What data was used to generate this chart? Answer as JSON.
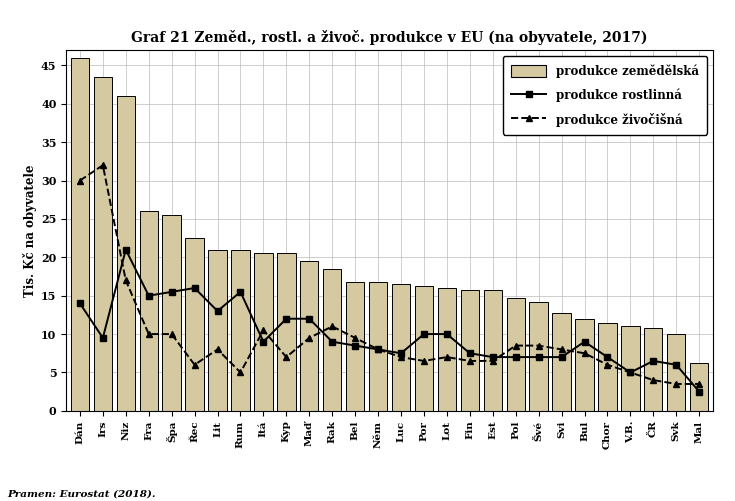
{
  "title": "Graf 21 Zeměd., rostl. a živoč. produkce v EU (na obyvatele, 2017)",
  "ylabel": "Tis. Kč na obyvatele",
  "source": "Pramen: Eurostat (2018).",
  "categories": [
    "Dán",
    "Irs",
    "Niz",
    "Fra",
    "Špa",
    "Řec",
    "Lit",
    "Rum",
    "Itá",
    "Kyp",
    "Maď",
    "Rak",
    "Bel",
    "Něm",
    "Luc",
    "Por",
    "Lot",
    "Fin",
    "Est",
    "Pol",
    "Švé",
    "Svi",
    "Bul",
    "Chor",
    "V.B.",
    "ČR",
    "Svk",
    "Mal"
  ],
  "bar_values": [
    46,
    43.5,
    41,
    26,
    25.5,
    22.5,
    21,
    21,
    20.5,
    20.5,
    19.5,
    18.5,
    16.8,
    16.8,
    16.5,
    16.2,
    16,
    15.8,
    15.8,
    14.7,
    14.2,
    12.8,
    12,
    11.5,
    11,
    10.8,
    10,
    6.2
  ],
  "line1_values": [
    14,
    9.5,
    21,
    15,
    15.5,
    16,
    13,
    15.5,
    9,
    12,
    12,
    9,
    8.5,
    8,
    7.5,
    10,
    10,
    7.5,
    7,
    7,
    7,
    7,
    9,
    7,
    5,
    6.5,
    6,
    2.5
  ],
  "line2_values": [
    30,
    32,
    17,
    10,
    10,
    6,
    8,
    5,
    10.5,
    7,
    9.5,
    11,
    9.5,
    8,
    7,
    6.5,
    7,
    6.5,
    6.5,
    8.5,
    8.5,
    8,
    7.5,
    6,
    5,
    4,
    3.5,
    3.5
  ],
  "bar_color": "#d4c9a0",
  "bar_edgecolor": "#000000",
  "line1_color": "#000000",
  "line2_color": "#000000",
  "ylim": [
    0,
    47
  ],
  "yticks": [
    0,
    5,
    10,
    15,
    20,
    25,
    30,
    35,
    40,
    45
  ],
  "legend_labels": [
    "produkce zemědělská",
    "produkce rostlinná",
    "produkce živočišná"
  ],
  "background_color": "#ffffff",
  "grid_color": "#bbbbbb",
  "figsize": [
    7.35,
    5.01
  ],
  "dpi": 100
}
